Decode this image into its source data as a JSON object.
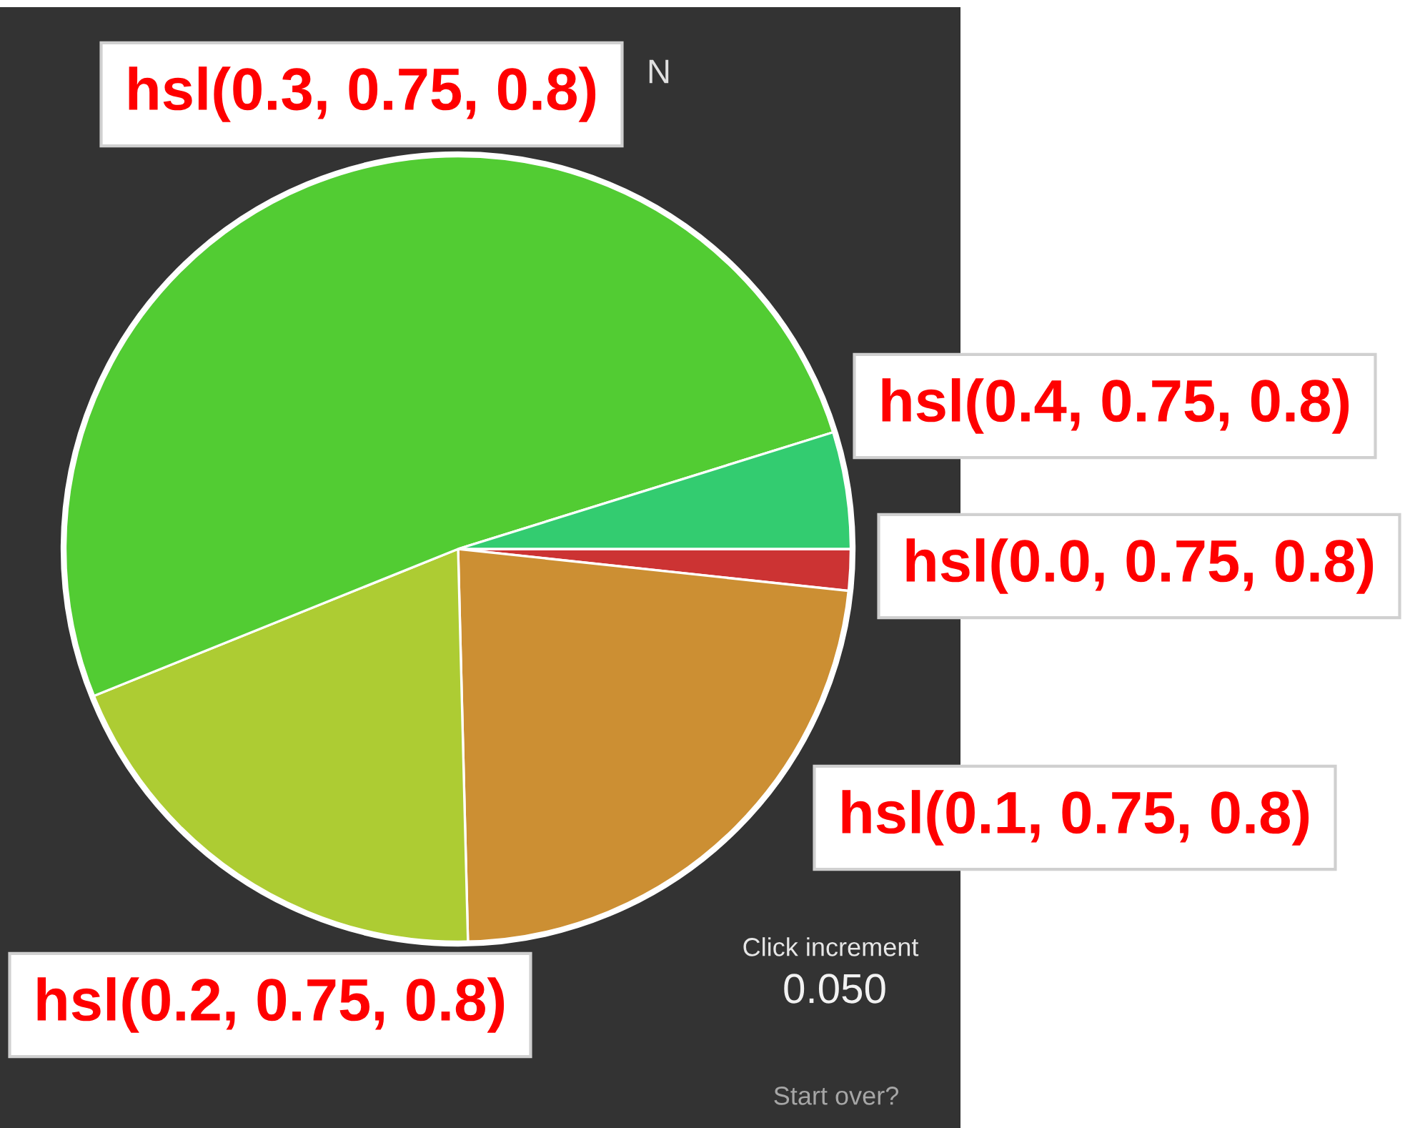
{
  "chart_data": {
    "type": "pie",
    "categories": [
      "hsl(0.0, 0.75, 0.8)",
      "hsl(0.1, 0.75, 0.8)",
      "hsl(0.2, 0.75, 0.8)",
      "hsl(0.3, 0.75, 0.8)",
      "hsl(0.4, 0.75, 0.8)"
    ],
    "values": [
      1.7,
      22.9,
      19.3,
      51.3,
      4.8
    ],
    "colors": [
      "#cc3333",
      "#cc8f33",
      "#adcc33",
      "#52cc33",
      "#33cc70"
    ],
    "annotations": [
      "N",
      "Click increment",
      "0.050",
      "Start over?"
    ]
  }
}
